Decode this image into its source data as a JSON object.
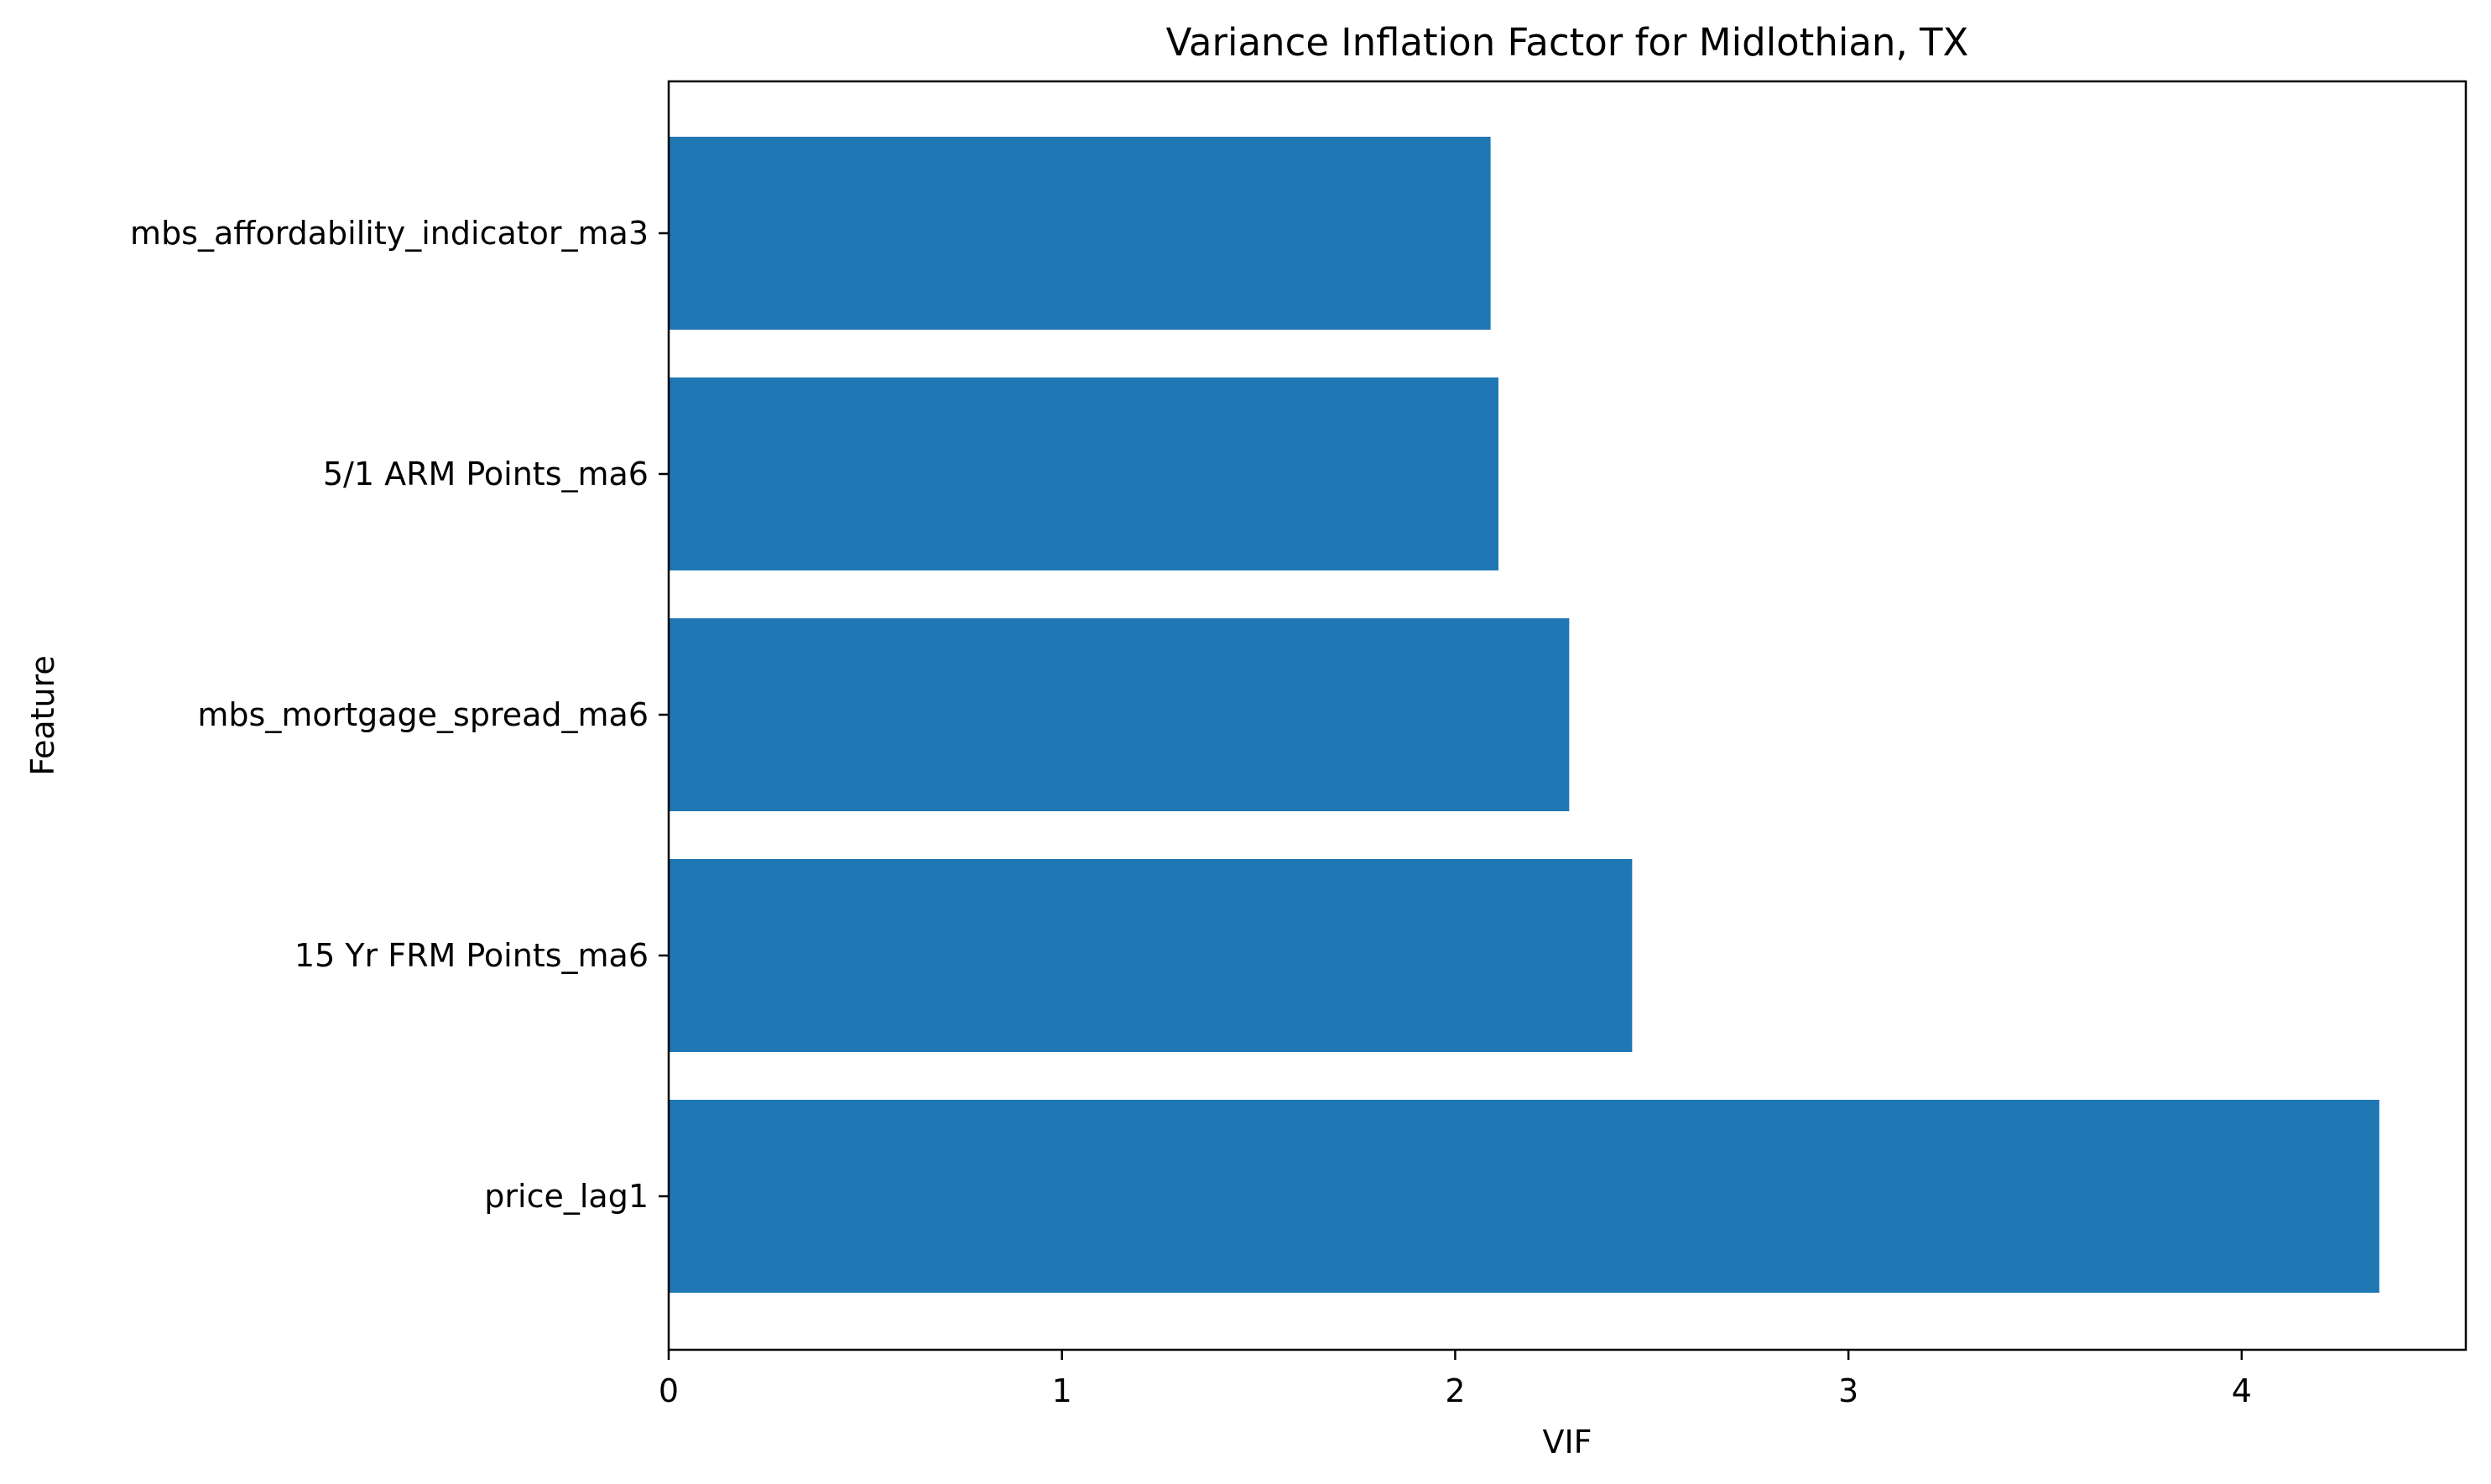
{
  "chart_data": {
    "type": "bar",
    "orientation": "horizontal",
    "title": "Variance Inflation Factor for Midlothian, TX",
    "xlabel": "VIF",
    "ylabel": "Feature",
    "categories": [
      "price_lag1",
      "15 Yr FRM Points_ma6",
      "mbs_mortgage_spread_ma6",
      "5/1 ARM Points_ma6",
      "mbs_affordability_indicator_ma3"
    ],
    "values": [
      4.35,
      2.45,
      2.29,
      2.11,
      2.09
    ],
    "xlim": [
      0,
      4.57
    ],
    "xticks": [
      0,
      1,
      2,
      3,
      4
    ],
    "grid": false,
    "legend": false,
    "bar_color": "#1f77b4"
  }
}
